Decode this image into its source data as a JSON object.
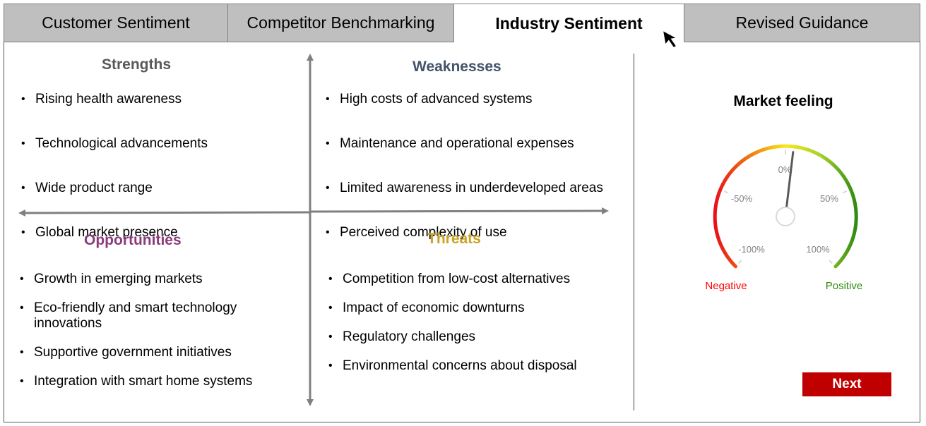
{
  "tabs": [
    {
      "label": "Customer Sentiment",
      "active": false
    },
    {
      "label": "Competitor Benchmarking",
      "active": false
    },
    {
      "label": "Industry Sentiment",
      "active": true
    },
    {
      "label": "Revised Guidance",
      "active": false
    }
  ],
  "swot": {
    "strengths": {
      "title": "Strengths",
      "color": "#595959",
      "items": [
        "Rising health awareness",
        "Technological advancements",
        "Wide product range",
        "Global market presence"
      ]
    },
    "weaknesses": {
      "title": "Weaknesses",
      "color": "#44546a",
      "items": [
        "High costs of advanced systems",
        "Maintenance and operational expenses",
        "Limited awareness in underdeveloped areas",
        "Perceived complexity of use"
      ]
    },
    "opportunities": {
      "title": "Opportunities",
      "color": "#8b3a7b",
      "items": [
        "Growth in emerging markets",
        "Eco-friendly and smart technology innovations",
        "Supportive government initiatives",
        "Integration with smart home systems"
      ]
    },
    "threats": {
      "title": "Threats",
      "color": "#c9a227",
      "items": [
        "Competition from low-cost alternatives",
        "Impact of economic downturns",
        "Regulatory challenges",
        "Environmental concerns about disposal"
      ]
    }
  },
  "gauge": {
    "title": "Market feeling",
    "ticks": [
      "-100%",
      "-50%",
      "0%",
      "50%",
      "100%"
    ],
    "negative_label": "Negative",
    "positive_label": "Positive",
    "negative_color": "#ff0000",
    "positive_color": "#2e8b0f",
    "value_percent": 5
  },
  "next_label": "Next",
  "colors": {
    "next_button": "#c00000",
    "axis": "#808080"
  }
}
